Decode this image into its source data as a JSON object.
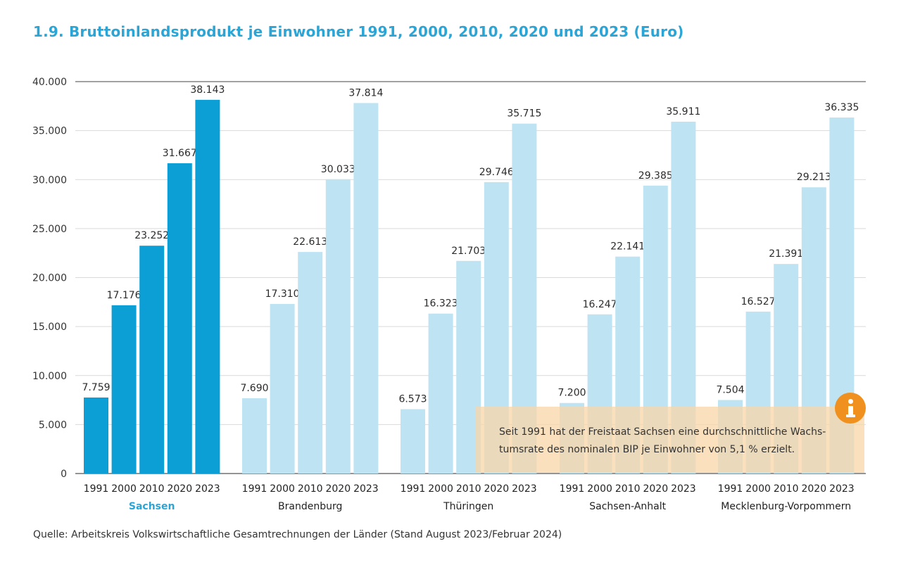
{
  "title": "1.9. Bruttoinlandsprodukt je Einwohner 1991, 2000, 2010, 2020 und 2023 (Euro)",
  "source": "Quelle: Arbeitskreis Volkswirtschaftliche Gesamtrechnungen der Länder (Stand August 2023/Februar 2024)",
  "info": {
    "icon": "info-icon",
    "line1": "Seit 1991 hat der Freistaat Sachsen eine durchschnittliche Wachs-",
    "line2": "tumsrate des nominalen BIP je Einwohner von 5,1 % erzielt."
  },
  "colors": {
    "highlight": "#0c9fd6",
    "other": "#bee4f4",
    "title": "#2aa5d6",
    "info_box": "#fad6a8",
    "info_icon": "#f0911f"
  },
  "chart_data": {
    "type": "bar",
    "title": "1.9. Bruttoinlandsprodukt je Einwohner 1991, 2000, 2010, 2020 und 2023 (Euro)",
    "xlabel": "",
    "ylabel": "",
    "ylim": [
      0,
      40000
    ],
    "yticks": [
      {
        "value": 0,
        "label": "0"
      },
      {
        "value": 5000,
        "label": "5.000"
      },
      {
        "value": 10000,
        "label": "10.000"
      },
      {
        "value": 15000,
        "label": "15.000"
      },
      {
        "value": 20000,
        "label": "20.000"
      },
      {
        "value": 25000,
        "label": "25.000"
      },
      {
        "value": 30000,
        "label": "30.000"
      },
      {
        "value": 35000,
        "label": "35.000"
      },
      {
        "value": 40000,
        "label": "40.000"
      }
    ],
    "grid": true,
    "years": [
      "1991",
      "2000",
      "2010",
      "2020",
      "2023"
    ],
    "groups": [
      {
        "name": "Sachsen",
        "highlight": true,
        "values": [
          7759,
          17176,
          23252,
          31667,
          38143
        ],
        "labels": [
          "7.759",
          "17.176",
          "23.252",
          "31.667",
          "38.143"
        ]
      },
      {
        "name": "Brandenburg",
        "highlight": false,
        "values": [
          7690,
          17310,
          22613,
          30033,
          37814
        ],
        "labels": [
          "7.690",
          "17.310",
          "22.613",
          "30.033",
          "37.814"
        ]
      },
      {
        "name": "Thüringen",
        "highlight": false,
        "values": [
          6573,
          16323,
          21703,
          29746,
          35715
        ],
        "labels": [
          "6.573",
          "16.323",
          "21.703",
          "29.746",
          "35.715"
        ]
      },
      {
        "name": "Sachsen-Anhalt",
        "highlight": false,
        "values": [
          7200,
          16247,
          22141,
          29385,
          35911
        ],
        "labels": [
          "7.200",
          "16.247",
          "22.141",
          "29.385",
          "35.911"
        ]
      },
      {
        "name": "Mecklenburg-Vorpommern",
        "highlight": false,
        "values": [
          7504,
          16527,
          21391,
          29213,
          36335
        ],
        "labels": [
          "7.504",
          "16.527",
          "21.391",
          "29.213",
          "36.335"
        ]
      }
    ]
  }
}
